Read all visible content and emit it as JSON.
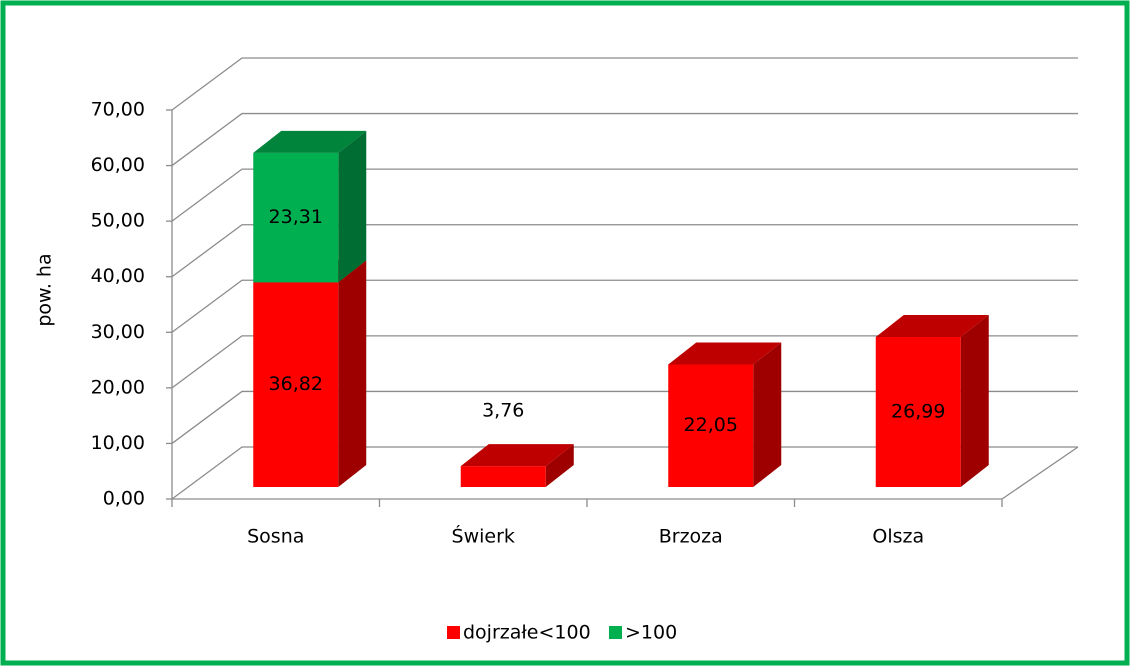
{
  "chart_data": {
    "type": "bar3d_stacked",
    "y_label": "pow. ha",
    "categories": [
      "Sosna",
      "Świerk",
      "Brzoza",
      "Olsza"
    ],
    "series": [
      {
        "name": "dojrzałe<100",
        "color": "#ff0000",
        "values": [
          36.82,
          3.76,
          22.05,
          26.99
        ],
        "value_labels": [
          "36,82",
          "3,76",
          "22,05",
          "26,99"
        ]
      },
      {
        "name": ">100",
        "color": "#00b050",
        "values": [
          23.31,
          null,
          null,
          null
        ],
        "value_labels": [
          "23,31",
          null,
          null,
          null
        ]
      }
    ],
    "ylim": [
      0,
      70
    ],
    "yticks": [
      {
        "value": 0,
        "label": "0,00"
      },
      {
        "value": 10,
        "label": "10,00"
      },
      {
        "value": 20,
        "label": "20,00"
      },
      {
        "value": 30,
        "label": "30,00"
      },
      {
        "value": 40,
        "label": "40,00"
      },
      {
        "value": 50,
        "label": "50,00"
      },
      {
        "value": 60,
        "label": "60,00"
      },
      {
        "value": 70,
        "label": "70,00"
      }
    ],
    "grid": true,
    "legend": "bottom"
  }
}
